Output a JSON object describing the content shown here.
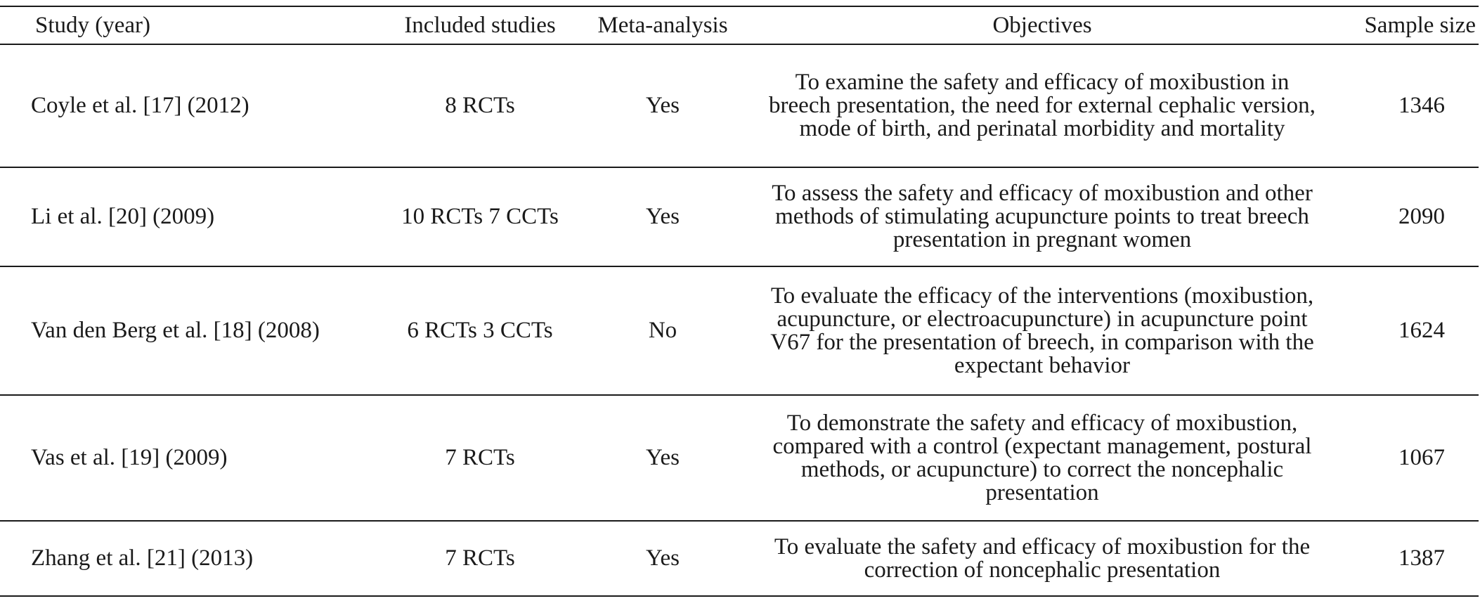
{
  "table": {
    "headers": {
      "study": "Study (year)",
      "included": "Included studies",
      "meta": "Meta-analysis",
      "objectives": "Objectives",
      "sample": "Sample size"
    },
    "rows": [
      {
        "study": "Coyle et al. [17] (2012)",
        "included": "8 RCTs",
        "meta": "Yes",
        "objectives": "To examine the safety and efficacy of moxibustion in breech presentation, the need for external cephalic version, mode of birth, and perinatal morbidity and mortality",
        "sample": "1346"
      },
      {
        "study": "Li et al. [20] (2009)",
        "included": "10 RCTs 7 CCTs",
        "meta": "Yes",
        "objectives": "To assess the safety and efficacy of moxibustion and other methods of stimulating acupuncture points to treat breech presentation in pregnant women",
        "sample": "2090"
      },
      {
        "study": "Van den Berg et al. [18] (2008)",
        "included": "6 RCTs 3 CCTs",
        "meta": "No",
        "objectives": "To evaluate the efficacy of the interventions (moxibustion, acupuncture, or electroacupuncture) in acupuncture point V67 for the presentation of breech, in comparison with the expectant behavior",
        "sample": "1624"
      },
      {
        "study": "Vas et al. [19] (2009)",
        "included": "7 RCTs",
        "meta": "Yes",
        "objectives": "To demonstrate the safety and efficacy of moxibustion, compared with a control (expectant management, postural methods, or acupuncture) to correct the noncephalic presentation",
        "sample": "1067"
      },
      {
        "study": "Zhang et al. [21] (2013)",
        "included": "7 RCTs",
        "meta": "Yes",
        "objectives": "To evaluate the safety and efficacy of moxibustion for the correction of noncephalic presentation",
        "sample": "1387"
      }
    ]
  }
}
